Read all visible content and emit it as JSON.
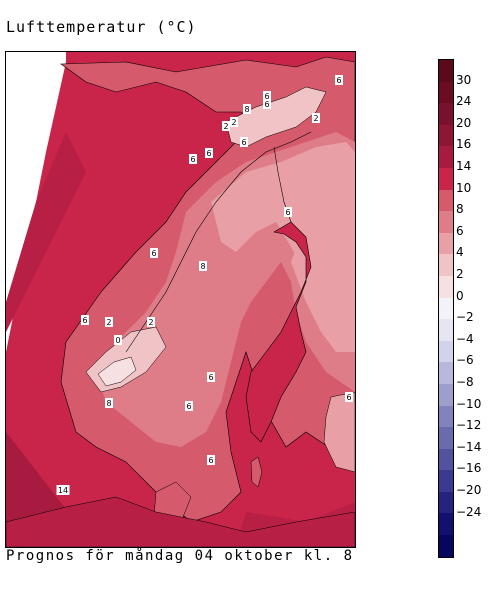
{
  "title": "Lufttemperatur (°C)",
  "caption": "Prognos för måndag 04 oktober kl. 8",
  "legend": {
    "colors": [
      "#5a0a1a",
      "#6b0d22",
      "#7a1030",
      "#8f1535",
      "#a81b40",
      "#c92449",
      "#d45a6c",
      "#de7d88",
      "#e8a0a6",
      "#f0c3c6",
      "#f7e0e2",
      "#f2f2f8",
      "#e6e6f2",
      "#d2d2ea",
      "#b8b8dc",
      "#9e9ecc",
      "#8282bc",
      "#6a6aae",
      "#52529e",
      "#3a3a8e",
      "#24247e",
      "#12126e",
      "#06065c"
    ],
    "labels": [
      "30",
      "24",
      "20",
      "16",
      "14",
      "10",
      "8",
      "6",
      "4",
      "2",
      "0",
      "−2",
      "−4",
      "−6",
      "−8",
      "−10",
      "−12",
      "−14",
      "−16",
      "−20",
      "−24"
    ]
  },
  "map": {
    "sea_color": "#c92449",
    "contour_labels": [
      "6",
      "6",
      "8",
      "2",
      "2",
      "6",
      "6",
      "2",
      "6",
      "6",
      "6",
      "8",
      "6",
      "2",
      "6",
      "2",
      "0",
      "6",
      "8",
      "6",
      "6",
      "6",
      "14"
    ]
  }
}
